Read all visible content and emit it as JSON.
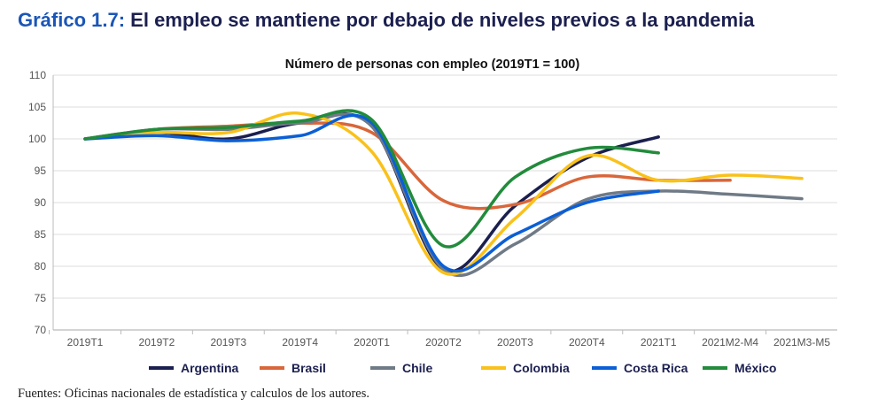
{
  "header": {
    "lead": "Gráfico 1.7:",
    "title": "El empleo se mantiene por debajo de niveles previos a la pandemia"
  },
  "source": "Fuentes: Oficinas nacionales de estadística y calculos de los autores.",
  "chart_data": {
    "type": "line",
    "title": "Número de personas con empleo (2019T1 = 100)",
    "xlabel": "",
    "ylabel": "",
    "ylim": [
      70,
      110
    ],
    "yticks": [
      70,
      75,
      80,
      85,
      90,
      95,
      100,
      105,
      110
    ],
    "grid": true,
    "legend": "bottom",
    "smooth": true,
    "categories": [
      "2019T1",
      "2019T2",
      "2019T3",
      "2019T4",
      "2020T1",
      "2020T2",
      "2020T3",
      "2020T4",
      "2021T1",
      "2021M2-M4",
      "2021M3-M5"
    ],
    "series": [
      {
        "name": "Argentina",
        "color": "#1b1f4f",
        "values": [
          100,
          101,
          100,
          102.5,
          102,
          79.5,
          89.5,
          97,
          100.3,
          null,
          null
        ]
      },
      {
        "name": "Brasil",
        "color": "#d9663a",
        "values": [
          100,
          101.5,
          102,
          102.5,
          101,
          90.3,
          89.7,
          94,
          93.5,
          93.5,
          null
        ]
      },
      {
        "name": "Chile",
        "color": "#6f7a86",
        "values": [
          100,
          101.5,
          101.5,
          102.5,
          102,
          79.5,
          83.5,
          90.5,
          91.8,
          91.3,
          90.6
        ]
      },
      {
        "name": "Colombia",
        "color": "#f9c11a",
        "values": [
          100,
          101,
          101,
          104,
          98,
          79,
          87.5,
          97.3,
          93.5,
          94.3,
          93.8
        ]
      },
      {
        "name": "Costa Rica",
        "color": "#0b5fd6",
        "values": [
          100,
          100.5,
          99.7,
          100.5,
          102.5,
          80,
          85,
          90,
          91.8,
          null,
          null
        ]
      },
      {
        "name": "México",
        "color": "#228b3c",
        "values": [
          100,
          101.5,
          101.8,
          102.8,
          103,
          83.2,
          94,
          98.5,
          97.8,
          null,
          null
        ]
      }
    ]
  }
}
